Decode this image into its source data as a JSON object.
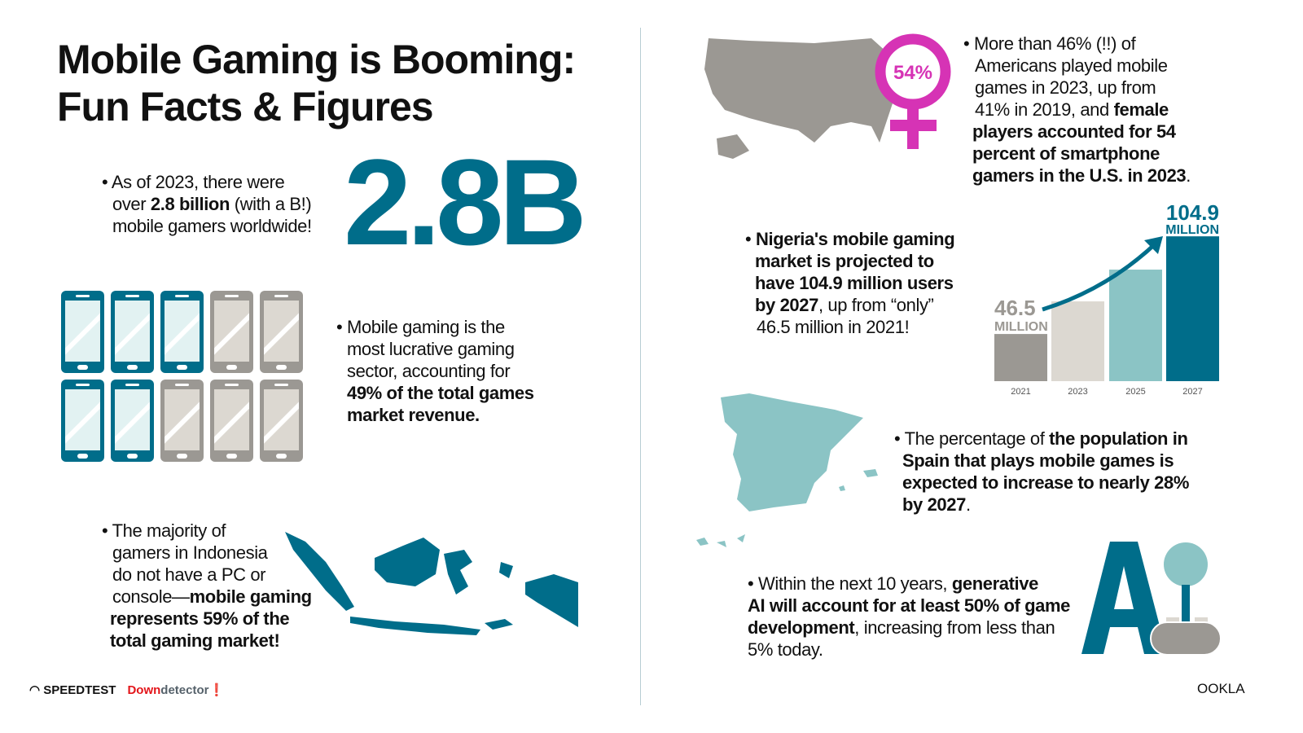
{
  "title": {
    "line1": "Mobile Gaming is Booming:",
    "line2": "Fun Facts & Figures"
  },
  "facts": {
    "gamers": {
      "bullet": "•",
      "s1": "As of 2023, there were",
      "s2": "over ",
      "s3": "2.8 billion",
      "s4": " (with a B!)",
      "s5": "mobile gamers worldwide!",
      "big": "2.8B"
    },
    "revenue": {
      "bullet": "•",
      "s1": "Mobile gaming is the",
      "s2": "most lucrative gaming",
      "s3": "sector, accounting for",
      "s4": "49% of the total games",
      "s5": "market revenue.",
      "share_filled": 0.5
    },
    "indonesia": {
      "bullet": "•",
      "s1": "The majority of",
      "s2": "gamers in Indonesia",
      "s3": "do not have a PC or",
      "s4": "console—",
      "s5": "mobile gaming",
      "s6": "represents 59% of the",
      "s7": "total gaming market!"
    },
    "usa": {
      "bullet": "•",
      "s1": "More than 46% (!!) of",
      "s2": "Americans played mobile",
      "s3": "games in 2023, up from",
      "s4": "41% in 2019, and ",
      "s5": "female",
      "s6": "players accounted for 54",
      "s7": "percent of smartphone",
      "s8": "gamers in the U.S. in 2023",
      "s9": ".",
      "badge": "54%"
    },
    "nigeria": {
      "bullet": "•",
      "s1": "Nigeria's mobile gaming",
      "s2": "market is projected to",
      "s3": "have 104.9 million users",
      "s4": "by 2027",
      "s5": ", up from “only”",
      "s6": "46.5 million in 2021!"
    },
    "spain": {
      "bullet": "•",
      "s1": "The percentage of ",
      "s2": "the population in",
      "s3": "Spain that plays mobile games is",
      "s4": "expected to increase to nearly 28%",
      "s5": "by 2027",
      "s6": "."
    },
    "ai": {
      "bullet": "•",
      "s1": "Within the next 10 years, ",
      "s2": "generative",
      "s3": "AI will account for at least 50% of game",
      "s4": "development",
      "s5": ", increasing from less than",
      "s6": "5% today.",
      "graphic": "AI"
    }
  },
  "chart_data": {
    "type": "bar",
    "categories": [
      "2021",
      "2023",
      "2025",
      "2027"
    ],
    "values": [
      46.5,
      66,
      85,
      104.9
    ],
    "labels": {
      "first_value": "46.5",
      "first_unit": "MILLION",
      "last_value": "104.9",
      "last_unit": "MILLION"
    },
    "colors": [
      "#9b9893",
      "#dcd8d1",
      "#8bc4c5",
      "#006d8a"
    ],
    "ylabel": "",
    "xlabel": ""
  },
  "colors": {
    "teal": "#006d8a",
    "light_teal": "#8bc4c5",
    "gray": "#9b9893",
    "light_gray": "#dcd8d1",
    "magenta": "#d633b5"
  },
  "footer": {
    "speedtest": "SPEEDTEST",
    "down": "Down",
    "detector": "detector",
    "ookla": "OOKLA"
  }
}
